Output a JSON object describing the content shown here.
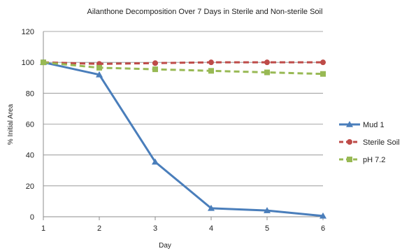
{
  "chart_data": {
    "type": "line",
    "title": "Ailanthone Decomposition Over 7 Days in Sterile and Non-sterile Soil",
    "xlabel": "Day",
    "ylabel": "% Initial Area",
    "x": [
      1,
      2,
      3,
      4,
      5,
      6
    ],
    "x_ticks": [
      "1",
      "2",
      "3",
      "4",
      "5",
      "6"
    ],
    "xlim": [
      1,
      6
    ],
    "ylim": [
      0,
      120
    ],
    "y_ticks": [
      "0",
      "20",
      "40",
      "60",
      "80",
      "100",
      "120"
    ],
    "y_tick_values": [
      0,
      20,
      40,
      60,
      80,
      100,
      120
    ],
    "grid": true,
    "legend_position": "right",
    "series": [
      {
        "name": "Mud 1",
        "values": [
          100,
          92,
          35.5,
          5.5,
          4,
          0.5
        ],
        "color": "#4a7ebb",
        "marker": "triangle",
        "dash": "solid"
      },
      {
        "name": "Sterile Soil",
        "values": [
          100,
          99,
          99.5,
          100,
          100,
          100
        ],
        "color": "#be4b48",
        "marker": "circle",
        "dash": "dashed"
      },
      {
        "name": "pH 7.2",
        "values": [
          100,
          96.5,
          95.5,
          94.5,
          93.5,
          92.5
        ],
        "color": "#98b954",
        "marker": "square",
        "dash": "dashed"
      }
    ]
  }
}
